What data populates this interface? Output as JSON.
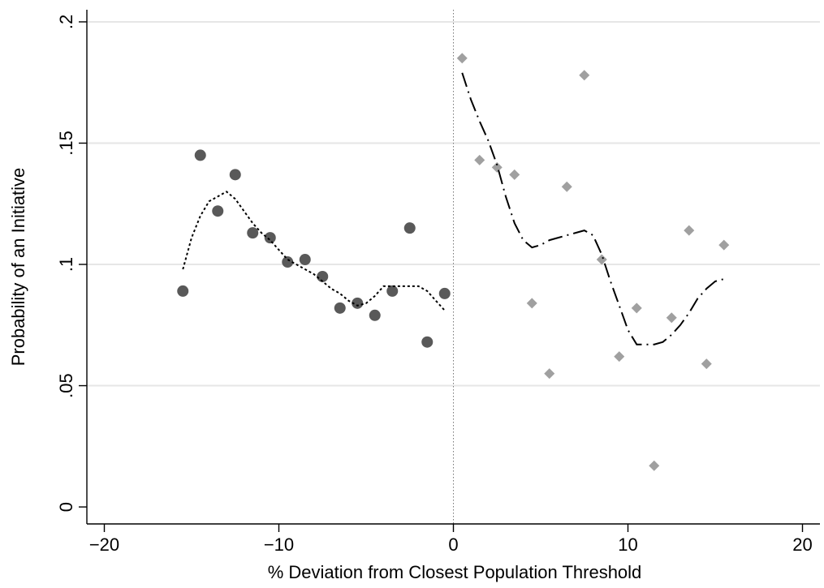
{
  "chart_data": {
    "type": "scatter",
    "title": "",
    "xlabel": "% Deviation from Closest Population Threshold",
    "ylabel": "Probability of an Initiative",
    "xlim": [
      -21,
      21
    ],
    "ylim": [
      -0.007,
      0.205
    ],
    "x_ticks": [
      -20,
      -10,
      0,
      10,
      20
    ],
    "x_tick_labels": [
      "−20",
      "−10",
      "0",
      "10",
      "20"
    ],
    "y_ticks": [
      0,
      0.05,
      0.1,
      0.15,
      0.2
    ],
    "y_tick_labels": [
      "0",
      ".05",
      ".1",
      ".15",
      ".2"
    ],
    "grid": "horizontal",
    "threshold_line_x": 0,
    "series": [
      {
        "kind": "scatter",
        "marker": "circle",
        "color": "#595959",
        "points": [
          [
            -15.5,
            0.089
          ],
          [
            -14.5,
            0.145
          ],
          [
            -13.5,
            0.122
          ],
          [
            -12.5,
            0.137
          ],
          [
            -11.5,
            0.113
          ],
          [
            -10.5,
            0.111
          ],
          [
            -9.5,
            0.101
          ],
          [
            -8.5,
            0.102
          ],
          [
            -7.5,
            0.095
          ],
          [
            -6.5,
            0.082
          ],
          [
            -5.5,
            0.084
          ],
          [
            -4.5,
            0.079
          ],
          [
            -3.5,
            0.089
          ],
          [
            -2.5,
            0.115
          ],
          [
            -1.5,
            0.068
          ],
          [
            -0.5,
            0.088
          ]
        ]
      },
      {
        "kind": "scatter",
        "marker": "diamond",
        "color": "#a0a0a0",
        "points": [
          [
            0.5,
            0.185
          ],
          [
            1.5,
            0.143
          ],
          [
            2.5,
            0.14
          ],
          [
            3.5,
            0.137
          ],
          [
            4.5,
            0.084
          ],
          [
            5.5,
            0.055
          ],
          [
            6.5,
            0.132
          ],
          [
            7.5,
            0.178
          ],
          [
            8.5,
            0.102
          ],
          [
            9.5,
            0.062
          ],
          [
            10.5,
            0.082
          ],
          [
            11.5,
            0.017
          ],
          [
            12.5,
            0.078
          ],
          [
            13.5,
            0.114
          ],
          [
            14.5,
            0.059
          ],
          [
            15.5,
            0.108
          ]
        ]
      },
      {
        "kind": "line",
        "style": "dotted",
        "color": "#000000",
        "points": [
          [
            -15.5,
            0.098
          ],
          [
            -15.0,
            0.111
          ],
          [
            -14.5,
            0.12
          ],
          [
            -14.0,
            0.126
          ],
          [
            -13.5,
            0.128
          ],
          [
            -13.0,
            0.13
          ],
          [
            -12.5,
            0.127
          ],
          [
            -12.0,
            0.122
          ],
          [
            -11.5,
            0.117
          ],
          [
            -11.0,
            0.113
          ],
          [
            -10.5,
            0.11
          ],
          [
            -10.0,
            0.106
          ],
          [
            -9.5,
            0.102
          ],
          [
            -9.0,
            0.1
          ],
          [
            -8.5,
            0.098
          ],
          [
            -8.0,
            0.096
          ],
          [
            -7.5,
            0.093
          ],
          [
            -7.0,
            0.09
          ],
          [
            -6.5,
            0.088
          ],
          [
            -6.0,
            0.085
          ],
          [
            -5.5,
            0.083
          ],
          [
            -5.0,
            0.084
          ],
          [
            -4.5,
            0.087
          ],
          [
            -4.0,
            0.091
          ],
          [
            -3.5,
            0.091
          ],
          [
            -3.0,
            0.091
          ],
          [
            -2.5,
            0.091
          ],
          [
            -2.0,
            0.091
          ],
          [
            -1.5,
            0.089
          ],
          [
            -1.0,
            0.085
          ],
          [
            -0.5,
            0.081
          ]
        ]
      },
      {
        "kind": "line",
        "style": "dashdot",
        "color": "#000000",
        "points": [
          [
            0.5,
            0.179
          ],
          [
            1.0,
            0.168
          ],
          [
            1.5,
            0.159
          ],
          [
            2.0,
            0.151
          ],
          [
            2.5,
            0.141
          ],
          [
            3.0,
            0.128
          ],
          [
            3.5,
            0.117
          ],
          [
            4.0,
            0.11
          ],
          [
            4.5,
            0.107
          ],
          [
            5.0,
            0.108
          ],
          [
            5.5,
            0.11
          ],
          [
            6.0,
            0.111
          ],
          [
            6.5,
            0.112
          ],
          [
            7.0,
            0.113
          ],
          [
            7.5,
            0.114
          ],
          [
            8.0,
            0.112
          ],
          [
            8.5,
            0.104
          ],
          [
            9.0,
            0.093
          ],
          [
            9.5,
            0.083
          ],
          [
            10.0,
            0.073
          ],
          [
            10.5,
            0.067
          ],
          [
            11.0,
            0.067
          ],
          [
            11.5,
            0.067
          ],
          [
            12.0,
            0.068
          ],
          [
            12.5,
            0.071
          ],
          [
            13.0,
            0.075
          ],
          [
            13.5,
            0.08
          ],
          [
            14.0,
            0.086
          ],
          [
            14.5,
            0.09
          ],
          [
            15.0,
            0.093
          ],
          [
            15.5,
            0.094
          ]
        ]
      }
    ]
  }
}
